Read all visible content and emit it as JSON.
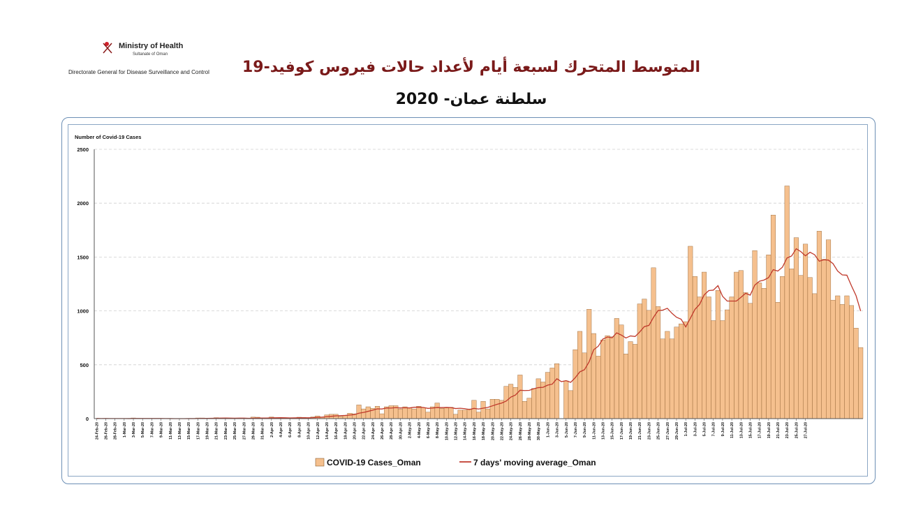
{
  "header": {
    "org_name": "Ministry of Health",
    "org_sub": "Sultanate of Oman",
    "directorate": "Directorate General for Disease Surveillance and Control",
    "title_ar": "المتوسط المتحرك لسبعة أيام لأعداد حالات فيروس كوفيد-19",
    "subtitle_ar": "سلطنة عمان- 2020"
  },
  "colors": {
    "bar_fill": "#f5c08e",
    "bar_stroke": "#8a5a2b",
    "line": "#c0392b",
    "frame": "#6c8fb5"
  },
  "chart_data": {
    "type": "bar",
    "ylabel": "Number of Covid-19 Cases",
    "ylim": [
      0,
      2500
    ],
    "yticks": [
      0,
      500,
      1000,
      1500,
      2000,
      2500
    ],
    "grid": true,
    "legend_placement": "bottom-center",
    "start_date": "2020-02-24",
    "x_tick_labels": [
      "24-Feb-20",
      "26-Feb-20",
      "28-Feb-20",
      "1-Mar-20",
      "3-Mar-20",
      "5-Mar-20",
      "7-Mar-20",
      "9-Mar-20",
      "11-Mar-20",
      "13-Mar-20",
      "15-Mar-20",
      "17-Mar-20",
      "19-Mar-20",
      "21-Mar-20",
      "23-Mar-20",
      "25-Mar-20",
      "27-Mar-20",
      "29-Mar-20",
      "31-Mar-20",
      "2-Apr-20",
      "4-Apr-20",
      "6-Apr-20",
      "8-Apr-20",
      "10-Apr-20",
      "12-Apr-20",
      "14-Apr-20",
      "16-Apr-20",
      "18-Apr-20",
      "20-Apr-20",
      "22-Apr-20",
      "24-Apr-20",
      "26-Apr-20",
      "28-Apr-20",
      "30-Apr-20",
      "2-May-20",
      "4-May-20",
      "6-May-20",
      "8-May-20",
      "10-May-20",
      "12-May-20",
      "14-May-20",
      "16-May-20",
      "18-May-20",
      "20-May-20",
      "22-May-20",
      "24-May-20",
      "26-May-20",
      "28-May-20",
      "30-May-20",
      "1-Jun-20",
      "3-Jun-20",
      "5-Jun-20",
      "7-Jun-20",
      "9-Jun-20",
      "11-Jun-20",
      "13-Jun-20",
      "15-Jun-20",
      "17-Jun-20",
      "19-Jun-20",
      "21-Jun-20",
      "23-Jun-20",
      "25-Jun-20",
      "27-Jun-20",
      "29-Jun-20",
      "1-Jul-20",
      "3-Jul-20",
      "5-Jul-20",
      "7-Jul-20",
      "9-Jul-20",
      "11-Jul-20",
      "13-Jul-20",
      "15-Jul-20",
      "17-Jul-20",
      "19-Jul-20",
      "21-Jul-20",
      "23-Jul-20",
      "25-Jul-20",
      "27-Jul-20"
    ],
    "series": [
      {
        "name": "COVID-19 Cases_Oman",
        "kind": "bar",
        "values": [
          2,
          0,
          2,
          0,
          0,
          0,
          0,
          0,
          6,
          3,
          2,
          0,
          0,
          0,
          0,
          0,
          0,
          0,
          0,
          1,
          2,
          0,
          6,
          6,
          0,
          5,
          9,
          6,
          6,
          0,
          3,
          5,
          2,
          0,
          14,
          13,
          0,
          5,
          15,
          8,
          5,
          7,
          2,
          8,
          13,
          11,
          7,
          16,
          25,
          16,
          35,
          40,
          40,
          20,
          31,
          50,
          45,
          127,
          90,
          110,
          95,
          115,
          45,
          110,
          120,
          120,
          90,
          110,
          100,
          90,
          115,
          102,
          60,
          110,
          145,
          95,
          100,
          105,
          40,
          80,
          80,
          90,
          170,
          60,
          160,
          90,
          180,
          180,
          170,
          300,
          320,
          290,
          405,
          160,
          190,
          280,
          370,
          340,
          430,
          470,
          510,
          0,
          350,
          260,
          640,
          810,
          610,
          1015,
          790,
          580,
          730,
          770,
          760,
          930,
          870,
          600,
          715,
          690,
          1065,
          1110,
          1005,
          1400,
          1040,
          740,
          810,
          740,
          850,
          880,
          900,
          1600,
          1320,
          1130,
          1360,
          1130,
          910,
          1190,
          910,
          1010,
          1130,
          1360,
          1375,
          1170,
          1070,
          1560,
          1260,
          1210,
          1520,
          1890,
          1080,
          1320,
          2160,
          1390,
          1680,
          1330,
          1620,
          1310,
          1160,
          1740,
          1480,
          1660,
          1100,
          1140,
          1060,
          1140,
          1050,
          840,
          660
        ]
      },
      {
        "name": "7 days' moving average_Oman",
        "kind": "line"
      }
    ]
  }
}
